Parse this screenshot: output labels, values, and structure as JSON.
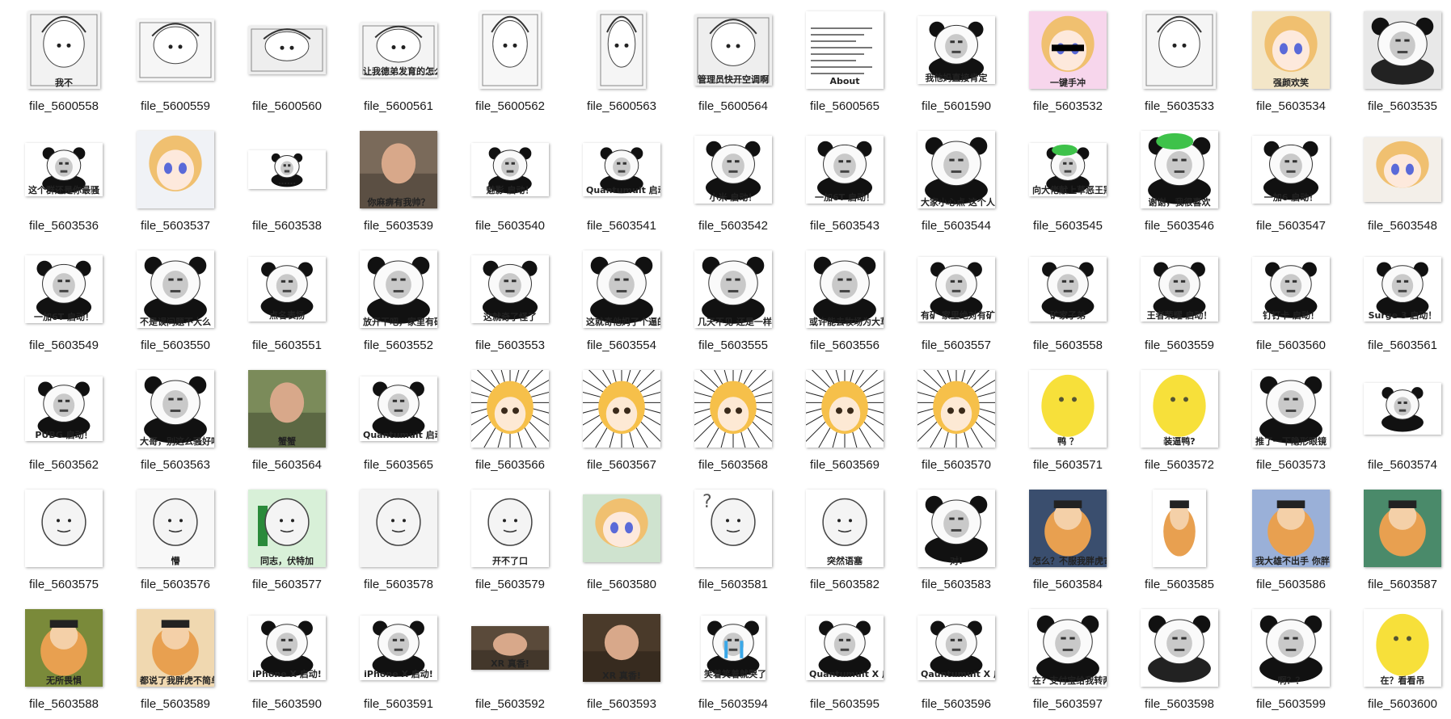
{
  "files": [
    {
      "name": "file_5600558",
      "caption": "我不",
      "kind": "manga",
      "bg": "#f2f2f2",
      "w": 90,
      "h": 96
    },
    {
      "name": "file_5600559",
      "caption": "",
      "kind": "manga",
      "bg": "#f6f6f6",
      "w": 96,
      "h": 76
    },
    {
      "name": "file_5600560",
      "caption": "",
      "kind": "manga",
      "bg": "#eeeeee",
      "w": 96,
      "h": 60
    },
    {
      "name": "file_5600561",
      "caption": "让我德弟发育的怎么样",
      "kind": "manga",
      "bg": "#f4f4f4",
      "w": 96,
      "h": 68
    },
    {
      "name": "file_5600562",
      "caption": "",
      "kind": "manga",
      "bg": "#f7f7f7",
      "w": 76,
      "h": 96
    },
    {
      "name": "file_5600563",
      "caption": "",
      "kind": "manga",
      "bg": "#f5f5f5",
      "w": 60,
      "h": 96
    },
    {
      "name": "file_5600564",
      "caption": "管理员快开空调啊",
      "kind": "manga",
      "bg": "#eeeeee",
      "w": 96,
      "h": 88
    },
    {
      "name": "file_5600565",
      "caption": "About",
      "kind": "text-page",
      "bg": "#ffffff",
      "w": 96,
      "h": 96
    },
    {
      "name": "file_5601590",
      "caption": "我他妈直接肯定",
      "kind": "panda",
      "bg": "#ffffff",
      "w": 96,
      "h": 84
    },
    {
      "name": "file_5603532",
      "caption": "一键手冲",
      "kind": "anime-pink",
      "bg": "#f7d6ec",
      "w": 96,
      "h": 96
    },
    {
      "name": "file_5603533",
      "caption": "",
      "kind": "manga",
      "bg": "#f5f5f5",
      "w": 90,
      "h": 96
    },
    {
      "name": "file_5603534",
      "caption": "强颜欢笑",
      "kind": "anime-color",
      "bg": "#f3e6c8",
      "w": 96,
      "h": 96
    },
    {
      "name": "file_5603535",
      "caption": "",
      "kind": "panda-dark",
      "bg": "#e8e8e8",
      "w": 96,
      "h": 96
    },
    {
      "name": "file_5603536",
      "caption": "这个群还是你最骚",
      "kind": "panda",
      "bg": "#ffffff",
      "w": 96,
      "h": 66
    },
    {
      "name": "file_5603537",
      "caption": "",
      "kind": "anime-color",
      "bg": "#f0f2f6",
      "w": 96,
      "h": 96
    },
    {
      "name": "file_5603538",
      "caption": "……",
      "kind": "panda-small",
      "bg": "#ffffff",
      "w": 96,
      "h": 48
    },
    {
      "name": "file_5603539",
      "caption": "你麻痹有我帅？",
      "kind": "photo",
      "bg": "#7a6a5a",
      "w": 96,
      "h": 96
    },
    {
      "name": "file_5603540",
      "caption": "魅影 启动！",
      "kind": "panda",
      "bg": "#ffffff",
      "w": 96,
      "h": 66
    },
    {
      "name": "file_5603541",
      "caption": "Quantumult 启动！",
      "kind": "panda",
      "bg": "#ffffff",
      "w": 96,
      "h": 66
    },
    {
      "name": "file_5603542",
      "caption": "小米   启动！",
      "kind": "panda",
      "bg": "#ffffff",
      "w": 96,
      "h": 84
    },
    {
      "name": "file_5603543",
      "caption": "一加6T   启动！",
      "kind": "panda",
      "bg": "#ffffff",
      "w": 96,
      "h": 84
    },
    {
      "name": "file_5603544",
      "caption": "大家小心点 这个人是二次元",
      "kind": "panda",
      "bg": "#ffffff",
      "w": 96,
      "h": 96
    },
    {
      "name": "file_5603545",
      "caption": "向大佬献上草恶王冠",
      "kind": "panda-green",
      "bg": "#ffffff",
      "w": 96,
      "h": 66
    },
    {
      "name": "file_5603546",
      "caption": "谢谢，我很喜欢",
      "kind": "panda-green",
      "bg": "#ffffff",
      "w": 96,
      "h": 96
    },
    {
      "name": "file_5603547",
      "caption": "一加6   启动！",
      "kind": "panda",
      "bg": "#ffffff",
      "w": 96,
      "h": 84
    },
    {
      "name": "file_5603548",
      "caption": "",
      "kind": "anime-color",
      "bg": "#f3efe9",
      "w": 96,
      "h": 80
    },
    {
      "name": "file_5603549",
      "caption": "一加6T   启动！",
      "kind": "panda",
      "bg": "#ffffff",
      "w": 96,
      "h": 84
    },
    {
      "name": "file_5603550",
      "caption": "不是误问题不大么",
      "kind": "panda",
      "bg": "#ffffff",
      "w": 96,
      "h": 96
    },
    {
      "name": "file_5603551",
      "caption": "点名表扬",
      "kind": "panda",
      "bg": "#ffffff",
      "w": 96,
      "h": 80
    },
    {
      "name": "file_5603552",
      "caption": "放开干吧，家里有矿",
      "kind": "panda",
      "bg": "#ffffff",
      "w": 96,
      "h": 96
    },
    {
      "name": "file_5603553",
      "caption": "这就奇了怪了",
      "kind": "panda",
      "bg": "#ffffff",
      "w": 96,
      "h": 84
    },
    {
      "name": "file_5603554",
      "caption": "这就奇他妈了个逼的怪了",
      "kind": "panda",
      "bg": "#ffffff",
      "w": 96,
      "h": 96
    },
    {
      "name": "file_5603555",
      "caption": "几天不见 还是一样垃圾",
      "kind": "panda",
      "bg": "#ffffff",
      "w": 96,
      "h": 96
    },
    {
      "name": "file_5603556",
      "caption": "或许能去牧场为大草地做贡献",
      "kind": "panda",
      "bg": "#ffffff",
      "w": 96,
      "h": 96
    },
    {
      "name": "file_5603557",
      "caption": "有矿 家里绝对有矿",
      "kind": "panda",
      "bg": "#ffffff",
      "w": 96,
      "h": 80
    },
    {
      "name": "file_5603558",
      "caption": "矿家子弟",
      "kind": "panda",
      "bg": "#ffffff",
      "w": 96,
      "h": 80
    },
    {
      "name": "file_5603559",
      "caption": "王者荣耀   启动！",
      "kind": "panda",
      "bg": "#ffffff",
      "w": 96,
      "h": 80
    },
    {
      "name": "file_5603560",
      "caption": "钉钉卡    启动！",
      "kind": "panda",
      "bg": "#ffffff",
      "w": 96,
      "h": 80
    },
    {
      "name": "file_5603561",
      "caption": "Surge 3   启动！",
      "kind": "panda",
      "bg": "#ffffff",
      "w": 96,
      "h": 80
    },
    {
      "name": "file_5603562",
      "caption": "PUBG   启动！",
      "kind": "panda",
      "bg": "#ffffff",
      "w": 96,
      "h": 80
    },
    {
      "name": "file_5603563",
      "caption": "大哥，别这么骚好吗",
      "kind": "panda",
      "bg": "#ffffff",
      "w": 96,
      "h": 96
    },
    {
      "name": "file_5603564",
      "caption": "蟹蟹",
      "kind": "photo",
      "bg": "#7b8b5a",
      "w": 96,
      "h": 96
    },
    {
      "name": "file_5603565",
      "caption": "Quantumult   启动!",
      "kind": "panda",
      "bg": "#ffffff",
      "w": 96,
      "h": 80
    },
    {
      "name": "file_5603566",
      "caption": "",
      "kind": "anime-burst",
      "bg": "#ffffff",
      "w": 96,
      "h": 96
    },
    {
      "name": "file_5603567",
      "caption": "",
      "kind": "anime-burst",
      "bg": "#ffffff",
      "w": 96,
      "h": 96
    },
    {
      "name": "file_5603568",
      "caption": "",
      "kind": "anime-burst",
      "bg": "#ffffff",
      "w": 96,
      "h": 96
    },
    {
      "name": "file_5603569",
      "caption": "",
      "kind": "anime-burst",
      "bg": "#ffffff",
      "w": 96,
      "h": 96
    },
    {
      "name": "file_5603570",
      "caption": "",
      "kind": "anime-burst",
      "bg": "#ffffff",
      "w": 96,
      "h": 96
    },
    {
      "name": "file_5603571",
      "caption": "鸭 ？",
      "kind": "yellow-blob",
      "bg": "#ffffff",
      "w": 96,
      "h": 96
    },
    {
      "name": "file_5603572",
      "caption": "装逼鸭?",
      "kind": "yellow-blob",
      "bg": "#ffffff",
      "w": 96,
      "h": 96
    },
    {
      "name": "file_5603573",
      "caption": "推了一下隐形眼镜",
      "kind": "panda",
      "bg": "#ffffff",
      "w": 96,
      "h": 96
    },
    {
      "name": "file_5603574",
      "caption": "",
      "kind": "panda-small",
      "bg": "#ffffff",
      "w": 96,
      "h": 64
    },
    {
      "name": "file_5603575",
      "caption": "",
      "kind": "doodle",
      "bg": "#ffffff",
      "w": 96,
      "h": 96
    },
    {
      "name": "file_5603576",
      "caption": "懵",
      "kind": "doodle",
      "bg": "#f8f8f8",
      "w": 96,
      "h": 96
    },
    {
      "name": "file_5603577",
      "caption": "同志，伏特加",
      "kind": "doodle-green",
      "bg": "#d8f0d8",
      "w": 96,
      "h": 96
    },
    {
      "name": "file_5603578",
      "caption": "",
      "kind": "doodle",
      "bg": "#f4f4f4",
      "w": 96,
      "h": 96
    },
    {
      "name": "file_5603579",
      "caption": "开不了口",
      "kind": "doodle",
      "bg": "#ffffff",
      "w": 96,
      "h": 96
    },
    {
      "name": "file_5603580",
      "caption": "",
      "kind": "anime-color",
      "bg": "#cfe3cf",
      "w": 96,
      "h": 84
    },
    {
      "name": "file_5603581",
      "caption": "",
      "kind": "doodle-q",
      "bg": "#ffffff",
      "w": 96,
      "h": 96
    },
    {
      "name": "file_5603582",
      "caption": "突然语塞",
      "kind": "doodle",
      "bg": "#ffffff",
      "w": 96,
      "h": 96
    },
    {
      "name": "file_5603583",
      "caption": "对!",
      "kind": "panda",
      "bg": "#ffffff",
      "w": 96,
      "h": 96
    },
    {
      "name": "file_5603584",
      "caption": "怎么？不服我胖虎?",
      "kind": "cartoon",
      "bg": "#3a4e6e",
      "w": 96,
      "h": 96
    },
    {
      "name": "file_5603585",
      "caption": "",
      "kind": "cartoon",
      "bg": "#ffffff",
      "w": 66,
      "h": 96
    },
    {
      "name": "file_5603586",
      "caption": "我大雄不出手 你胖虎要上天了不成?",
      "kind": "cartoon",
      "bg": "#9ab0d8",
      "w": 96,
      "h": 96
    },
    {
      "name": "file_5603587",
      "caption": "",
      "kind": "cartoon",
      "bg": "#4a8a6a",
      "w": 96,
      "h": 96
    },
    {
      "name": "file_5603588",
      "caption": "无所畏惧",
      "kind": "cartoon",
      "bg": "#7a8a3a",
      "w": 96,
      "h": 96
    },
    {
      "name": "file_5603589",
      "caption": "都说了我胖虎不简单",
      "kind": "cartoon",
      "bg": "#f0d8b0",
      "w": 96,
      "h": 96
    },
    {
      "name": "file_5603590",
      "caption": "iPhone X    启动!",
      "kind": "panda",
      "bg": "#ffffff",
      "w": 96,
      "h": 80
    },
    {
      "name": "file_5603591",
      "caption": "iPhone X    启动!",
      "kind": "panda",
      "bg": "#ffffff",
      "w": 96,
      "h": 80
    },
    {
      "name": "file_5603592",
      "caption": "XR 真香!",
      "kind": "photo",
      "bg": "#5a4a3a",
      "w": 96,
      "h": 54
    },
    {
      "name": "file_5603593",
      "caption": "XR 真香!",
      "kind": "photo",
      "bg": "#4a3a2a",
      "w": 96,
      "h": 84
    },
    {
      "name": "file_5603594",
      "caption": "笑着笑着就哭了",
      "kind": "panda-blue",
      "bg": "#ffffff",
      "w": 80,
      "h": 80
    },
    {
      "name": "file_5603595",
      "caption": "Quantumult X 启动!",
      "kind": "panda",
      "bg": "#ffffff",
      "w": 96,
      "h": 80
    },
    {
      "name": "file_5603596",
      "caption": "Qauntumult X 启动!",
      "kind": "panda",
      "bg": "#ffffff",
      "w": 96,
      "h": 80
    },
    {
      "name": "file_5603597",
      "caption": "在? 支付宝给我转两百万",
      "kind": "panda",
      "bg": "#ffffff",
      "w": 96,
      "h": 96
    },
    {
      "name": "file_5603598",
      "caption": "",
      "kind": "panda-dark",
      "bg": "#ffffff",
      "w": 96,
      "h": 96
    },
    {
      "name": "file_5603599",
      "caption": "啊？？",
      "kind": "panda",
      "bg": "#ffffff",
      "w": 96,
      "h": 96
    },
    {
      "name": "file_5603600",
      "caption": "在？看看吊",
      "kind": "yellow-blob",
      "bg": "#ffffff",
      "w": 96,
      "h": 96
    }
  ],
  "colors": {
    "filename_text": "#1a1a1a",
    "page_bg": "#ffffff",
    "shadow": "rgba(0,0,0,0.35)"
  }
}
